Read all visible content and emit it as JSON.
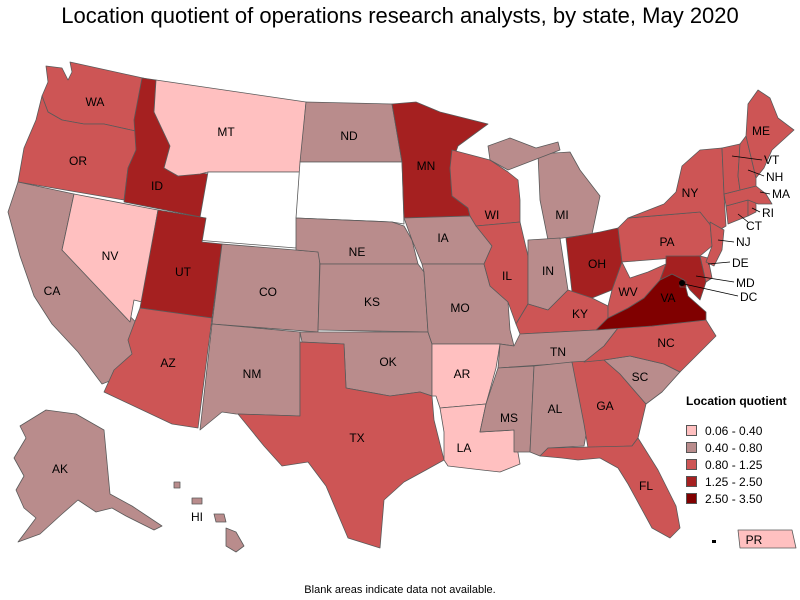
{
  "title": "Location quotient of operations research analysts, by state, May 2020",
  "footnote": "Blank areas indicate data not available.",
  "legend": {
    "title": "Location quotient",
    "items": [
      {
        "label": "0.06 - 0.40",
        "color": "#ffc0c0"
      },
      {
        "label": "0.40 - 0.80",
        "color": "#b98c8c"
      },
      {
        "label": "0.80 - 1.25",
        "color": "#cd5555"
      },
      {
        "label": "1.25 - 2.50",
        "color": "#a52020"
      },
      {
        "label": "2.50 - 3.50",
        "color": "#800000"
      }
    ]
  },
  "colors": {
    "c1": "#ffc0c0",
    "c2": "#b98c8c",
    "c3": "#cd5555",
    "c4": "#a52020",
    "c5": "#800000",
    "none": "#ffffff"
  },
  "states": {
    "WA": {
      "class": "c3"
    },
    "OR": {
      "class": "c3"
    },
    "CA": {
      "class": "c2"
    },
    "NV": {
      "class": "c1"
    },
    "ID": {
      "class": "c4"
    },
    "MT": {
      "class": "c1"
    },
    "WY": {
      "class": "none"
    },
    "UT": {
      "class": "c4"
    },
    "AZ": {
      "class": "c3"
    },
    "CO": {
      "class": "c2"
    },
    "NM": {
      "class": "c2"
    },
    "ND": {
      "class": "c2"
    },
    "SD": {
      "class": "none"
    },
    "NE": {
      "class": "c2"
    },
    "KS": {
      "class": "c2"
    },
    "OK": {
      "class": "c2"
    },
    "TX": {
      "class": "c3"
    },
    "MN": {
      "class": "c4"
    },
    "IA": {
      "class": "c2"
    },
    "MO": {
      "class": "c2"
    },
    "AR": {
      "class": "c1"
    },
    "LA": {
      "class": "c1"
    },
    "WI": {
      "class": "c3"
    },
    "IL": {
      "class": "c3"
    },
    "MI": {
      "class": "c2"
    },
    "IN": {
      "class": "c2"
    },
    "OH": {
      "class": "c4"
    },
    "KY": {
      "class": "c3"
    },
    "TN": {
      "class": "c2"
    },
    "MS": {
      "class": "c2"
    },
    "AL": {
      "class": "c2"
    },
    "GA": {
      "class": "c3"
    },
    "FL": {
      "class": "c3"
    },
    "SC": {
      "class": "c2"
    },
    "NC": {
      "class": "c3"
    },
    "VA": {
      "class": "c5"
    },
    "WV": {
      "class": "c3"
    },
    "PA": {
      "class": "c3"
    },
    "NY": {
      "class": "c3"
    },
    "ME": {
      "class": "c3"
    },
    "VT": {
      "class": "c3"
    },
    "NH": {
      "class": "c3"
    },
    "MA": {
      "class": "c3"
    },
    "RI": {
      "class": "c3"
    },
    "CT": {
      "class": "c3"
    },
    "NJ": {
      "class": "c3"
    },
    "DE": {
      "class": "c3"
    },
    "MD": {
      "class": "c4"
    },
    "DC": {
      "class": "c5"
    },
    "AK": {
      "class": "c2"
    },
    "HI": {
      "class": "c2"
    },
    "PR": {
      "class": "c1"
    }
  }
}
